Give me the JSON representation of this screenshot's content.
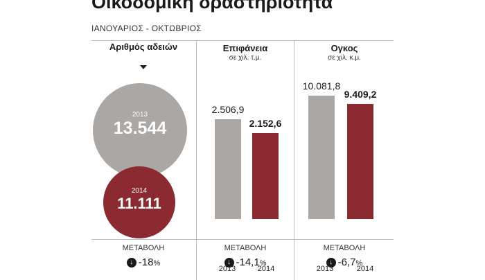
{
  "title": "Οικοδομική δραστηριότητα",
  "subtitle": "ΙΑΝΟΥΑΡΙΟΣ - ΟΚΤΩΒΡΙΟΣ",
  "change_label": "ΜΕΤΑΒΟΛΗ",
  "colors": {
    "y2013": "#aaa7a4",
    "y2014": "#8c2a31"
  },
  "chart_data": [
    {
      "type": "bubble",
      "title": "Αριθμός αδειών",
      "categories": [
        "2013",
        "2014"
      ],
      "values": [
        13544,
        11111
      ],
      "value_labels": [
        "13.544",
        "11.111"
      ],
      "change": {
        "direction": "down",
        "icon": "arrow-down-icon",
        "text": "-18",
        "unit": "%"
      }
    },
    {
      "type": "bar",
      "title": "Επιφάνεια",
      "unit": "σε χιλ. τ.μ.",
      "categories": [
        "2013",
        "2014"
      ],
      "values": [
        2506.9,
        2152.6
      ],
      "value_labels": [
        "2.506,9",
        "2.152,6"
      ],
      "change": {
        "direction": "down",
        "icon": "arrow-down-icon",
        "text": "-14,1",
        "unit": "%"
      }
    },
    {
      "type": "bar",
      "title": "Ογκος",
      "unit": "σε χιλ. κ.μ.",
      "categories": [
        "2013",
        "2014"
      ],
      "values": [
        10081.8,
        9409.2
      ],
      "value_labels": [
        "10.081,8",
        "9.409,2"
      ],
      "change": {
        "direction": "down",
        "icon": "arrow-down-icon",
        "text": "-6,7",
        "unit": "%"
      }
    }
  ]
}
